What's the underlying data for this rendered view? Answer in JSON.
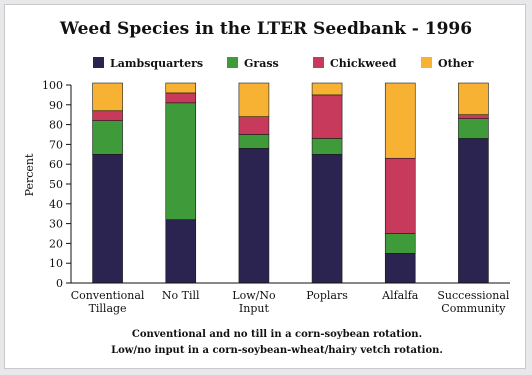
{
  "chart_data": {
    "type": "bar",
    "stacked": true,
    "title": "Weed Species in the LTER Seedbank - 1996",
    "ylabel": "Percent",
    "xlabel": "",
    "ylim": [
      0,
      100
    ],
    "yticks": [
      0,
      10,
      20,
      30,
      40,
      50,
      60,
      70,
      80,
      90,
      100
    ],
    "grid": false,
    "legend_position": "top",
    "categories": [
      [
        "Conventional",
        "Tillage"
      ],
      [
        "No Till"
      ],
      [
        "Low/No",
        "Input"
      ],
      [
        "Poplars"
      ],
      [
        "Alfalfa"
      ],
      [
        "Successional",
        "Community"
      ]
    ],
    "series": [
      {
        "name": "Lambsquarters",
        "color": "#2b2350",
        "values": [
          65,
          32,
          68,
          65,
          15,
          73
        ]
      },
      {
        "name": "Grass",
        "color": "#3f9a3a",
        "values": [
          17,
          59,
          7,
          8,
          10,
          10
        ]
      },
      {
        "name": "Chickweed",
        "color": "#c83a5c",
        "values": [
          5,
          5,
          9,
          22,
          38,
          2
        ]
      },
      {
        "name": "Other",
        "color": "#f7b233",
        "values": [
          14,
          5,
          17,
          6,
          38,
          16
        ]
      }
    ]
  },
  "caption": {
    "line1": "Conventional and no till in a corn-soybean rotation.",
    "line2": "Low/no input in a corn-soybean-wheat/hairy vetch rotation."
  }
}
